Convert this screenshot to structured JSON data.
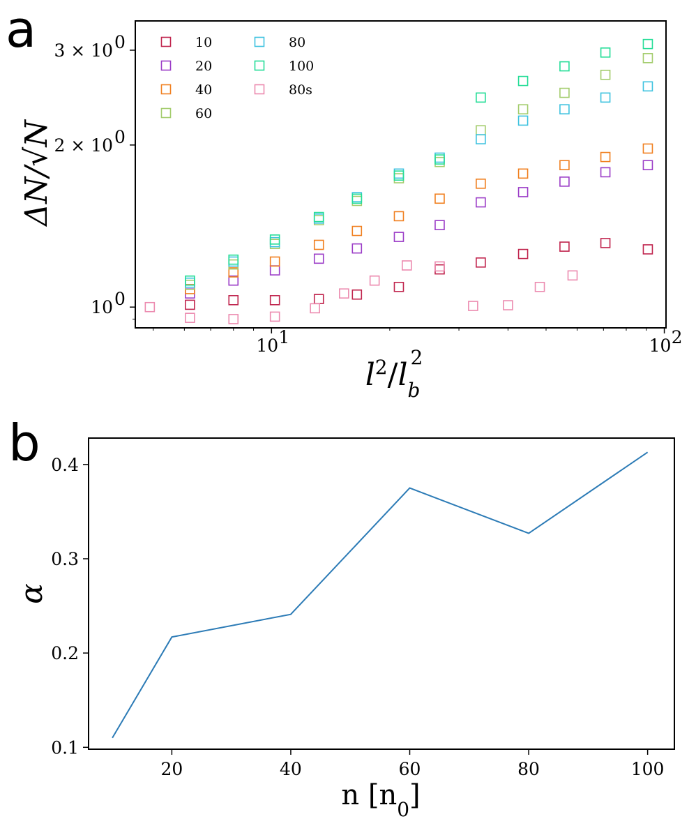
{
  "panel_labels": [
    "a",
    "b"
  ],
  "chart_data": [
    {
      "type": "scatter",
      "panel": "a",
      "xscale": "log",
      "yscale": "log",
      "xlim": [
        4.5,
        101
      ],
      "ylim": [
        0.915,
        3.4
      ],
      "xlabel": "l²/l_b²",
      "ylabel": "ΔN/√N",
      "x_ticks": [
        {
          "value": 10,
          "label_base": "10",
          "label_exp": "1"
        },
        {
          "value": 100,
          "label_base": "10",
          "label_exp": "2"
        }
      ],
      "y_ticks": [
        {
          "value": 1,
          "label_base": "10",
          "label_exp": "0",
          "label_prefix": ""
        },
        {
          "value": 2,
          "label_base": "10",
          "label_exp": "0",
          "label_prefix": "2 × "
        },
        {
          "value": 3,
          "label_base": "10",
          "label_exp": "0",
          "label_prefix": "3 × "
        }
      ],
      "marker": "open-square",
      "legend_location": "upper-left",
      "series": [
        {
          "name": "10",
          "color": "#c0244d",
          "x": [
            6.2,
            8.0,
            10.2,
            13.2,
            16.5,
            21.1,
            26.8,
            34.1,
            43.7,
            55.7,
            70.8,
            90.8
          ],
          "y": [
            1.01,
            1.03,
            1.03,
            1.035,
            1.055,
            1.09,
            1.175,
            1.21,
            1.255,
            1.295,
            1.315,
            1.28
          ]
        },
        {
          "name": "20",
          "color": "#9b3cc7",
          "x": [
            6.2,
            8.0,
            10.2,
            13.2,
            16.5,
            21.1,
            26.8,
            34.1,
            43.7,
            55.7,
            70.8,
            90.8
          ],
          "y": [
            1.06,
            1.12,
            1.17,
            1.23,
            1.285,
            1.35,
            1.42,
            1.565,
            1.635,
            1.71,
            1.78,
            1.835
          ]
        },
        {
          "name": "40",
          "color": "#f07f1f",
          "x": [
            6.2,
            8.0,
            10.2,
            13.2,
            16.5,
            21.1,
            26.8,
            34.1,
            43.7,
            55.7,
            70.8,
            90.8
          ],
          "y": [
            1.08,
            1.16,
            1.215,
            1.305,
            1.385,
            1.475,
            1.59,
            1.695,
            1.77,
            1.835,
            1.9,
            1.97
          ]
        },
        {
          "name": "60",
          "color": "#a3cc6c",
          "x": [
            6.2,
            8.0,
            10.2,
            13.2,
            16.5,
            21.1,
            26.8,
            34.1,
            43.7,
            55.7,
            70.8,
            90.8
          ],
          "y": [
            1.1,
            1.2,
            1.31,
            1.45,
            1.575,
            1.735,
            1.86,
            2.13,
            2.33,
            2.5,
            2.7,
            2.9
          ]
        },
        {
          "name": "80",
          "color": "#3dc2df",
          "x": [
            6.2,
            8.0,
            10.2,
            13.2,
            16.5,
            21.1,
            26.8,
            34.1,
            43.7,
            55.7,
            70.8,
            90.8
          ],
          "y": [
            1.11,
            1.215,
            1.32,
            1.46,
            1.6,
            1.77,
            1.895,
            2.05,
            2.22,
            2.33,
            2.45,
            2.57
          ]
        },
        {
          "name": "100",
          "color": "#24dd97",
          "x": [
            6.2,
            8.0,
            10.2,
            13.2,
            16.5,
            21.1,
            26.8,
            34.1,
            43.7,
            55.7,
            70.8,
            90.8
          ],
          "y": [
            1.12,
            1.225,
            1.335,
            1.47,
            1.59,
            1.755,
            1.88,
            2.45,
            2.63,
            2.8,
            2.97,
            3.08
          ]
        },
        {
          "name": "80s",
          "color": "#ec8aaf",
          "x": [
            4.9,
            6.2,
            8.0,
            10.2,
            12.9,
            15.3,
            18.3,
            22.1,
            26.8,
            32.6,
            40.0,
            48.2,
            58.4
          ],
          "y": [
            1.0,
            0.955,
            0.95,
            0.96,
            0.995,
            1.06,
            1.12,
            1.195,
            1.19,
            1.005,
            1.008,
            1.09,
            1.145
          ]
        }
      ]
    },
    {
      "type": "line",
      "panel": "b",
      "xlim": [
        6,
        104.5
      ],
      "ylim": [
        0.098,
        0.428
      ],
      "xlabel": "n [n",
      "xlabel_sub": "0",
      "xlabel_tail": "]",
      "ylabel": "α",
      "x_ticks": [
        20,
        40,
        60,
        80,
        100
      ],
      "y_ticks": [
        "0.1",
        "0.2",
        "0.3",
        "0.4"
      ],
      "line_color": "#2c7bb6",
      "x": [
        10,
        20,
        40,
        60,
        80,
        100
      ],
      "y": [
        0.11,
        0.217,
        0.241,
        0.375,
        0.327,
        0.413
      ]
    }
  ]
}
